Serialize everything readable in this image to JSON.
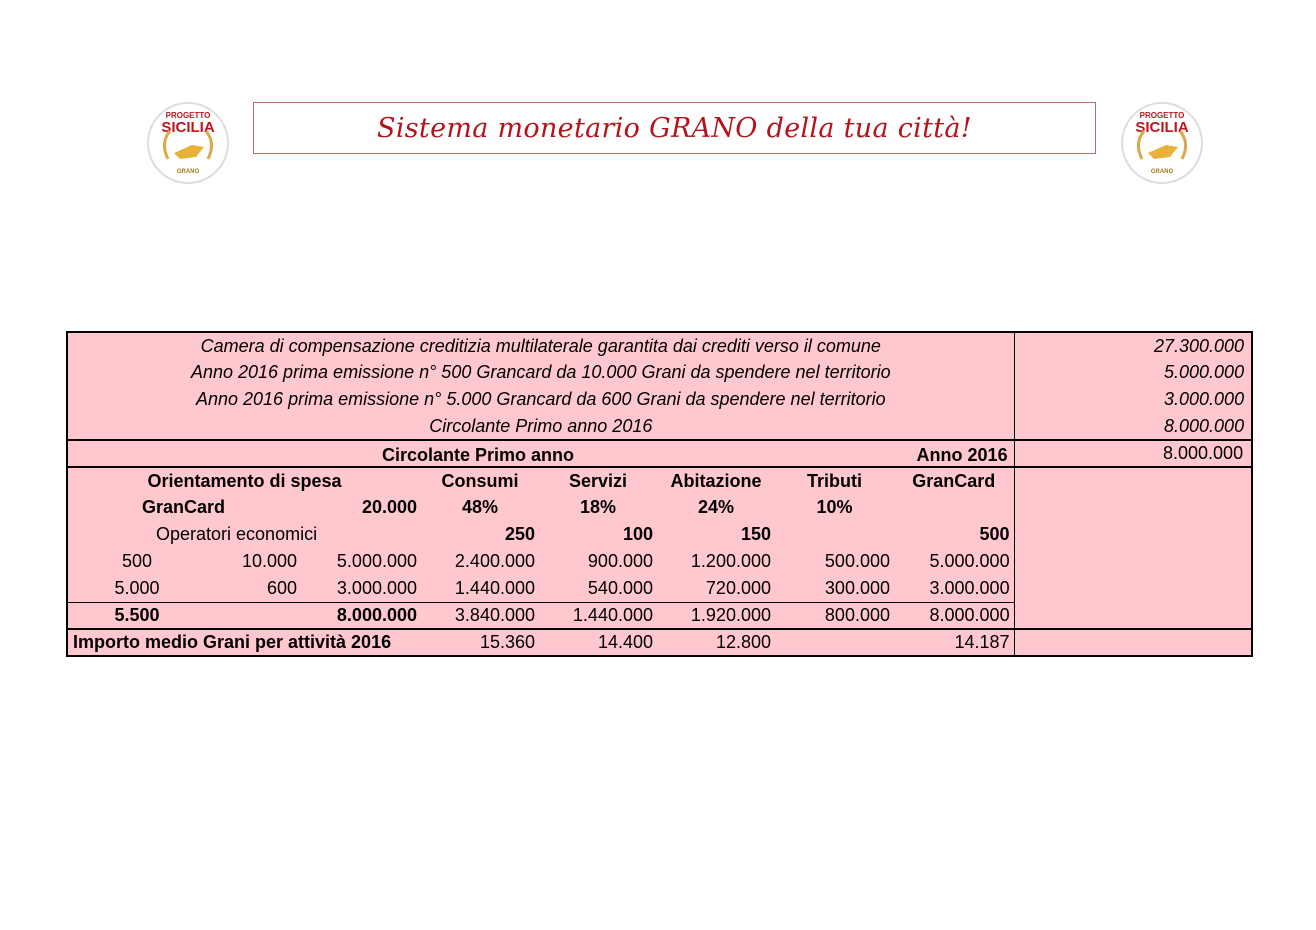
{
  "header": {
    "title": "Sistema monetario GRANO della tua città!",
    "logo_left": {
      "line1": "PROGETTO",
      "line2": "SICILIA",
      "line3": "GRANO"
    },
    "logo_right": {
      "line1": "PROGETTO",
      "line2": "SICILIA",
      "line3": "GRANO"
    }
  },
  "summary": [
    {
      "label": "Camera di compensazione creditizia multilaterale garantita dai crediti verso il comune",
      "value": "27.300.000"
    },
    {
      "label": "Anno 2016 prima emissione n° 500 Grancard da 10.000 Grani da spendere nel territorio",
      "value": "5.000.000"
    },
    {
      "label": "Anno 2016 prima emissione n° 5.000 Grancard da 600 Grani da spendere nel territorio",
      "value": "3.000.000"
    },
    {
      "label": "Circolante Primo anno 2016",
      "value": "8.000.000"
    }
  ],
  "circolante": {
    "label": "Circolante Primo anno",
    "year": "Anno 2016",
    "value": "8.000.000"
  },
  "orientamento": {
    "label": "Orientamento di spesa",
    "columns": [
      "Consumi",
      "Servizi",
      "Abitazione",
      "Tributi",
      "GranCard"
    ]
  },
  "grancard_row": {
    "label": "GranCard",
    "total": "20.000",
    "percentages": [
      "48%",
      "18%",
      "24%",
      "10%",
      ""
    ]
  },
  "operatori_row": {
    "label": "Operatori economici",
    "counts": [
      "250",
      "100",
      "150",
      "",
      "500"
    ]
  },
  "data_rows": [
    {
      "cards": "500",
      "grani": "10.000",
      "total": "5.000.000",
      "values": [
        "2.400.000",
        "900.000",
        "1.200.000",
        "500.000",
        "5.000.000"
      ]
    },
    {
      "cards": "5.000",
      "grani": "600",
      "total": "3.000.000",
      "values": [
        "1.440.000",
        "540.000",
        "720.000",
        "300.000",
        "3.000.000"
      ]
    }
  ],
  "total_row": {
    "cards": "5.500",
    "total": "8.000.000",
    "values": [
      "3.840.000",
      "1.440.000",
      "1.920.000",
      "800.000",
      "8.000.000"
    ]
  },
  "average_row": {
    "label": "Importo medio Grani per attività 2016",
    "values": [
      "15.360",
      "14.400",
      "12.800",
      "",
      "14.187"
    ]
  }
}
